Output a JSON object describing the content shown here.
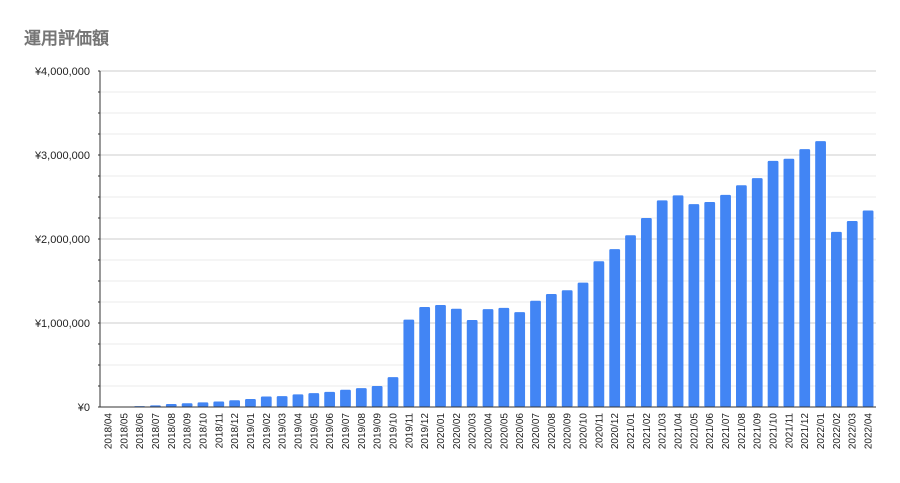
{
  "chart_data": {
    "type": "bar",
    "title": "運用評価額",
    "xlabel": "",
    "ylabel": "",
    "ylim": [
      0,
      4000000
    ],
    "y_ticks": [
      {
        "value": 0,
        "label": "¥0"
      },
      {
        "value": 1000000,
        "label": "¥1,000,000"
      },
      {
        "value": 2000000,
        "label": "¥2,000,000"
      },
      {
        "value": 3000000,
        "label": "¥3,000,000"
      },
      {
        "value": 4000000,
        "label": "¥4,000,000"
      }
    ],
    "grid": true,
    "bar_color": "#4285F4",
    "categories": [
      "2018/04",
      "2018/05",
      "2018/06",
      "2018/07",
      "2018/08",
      "2018/09",
      "2018/10",
      "2018/11",
      "2018/12",
      "2019/01",
      "2019/02",
      "2019/03",
      "2019/04",
      "2019/05",
      "2019/06",
      "2019/07",
      "2019/08",
      "2019/09",
      "2019/10",
      "2019/11",
      "2019/12",
      "2020/01",
      "2020/02",
      "2020/03",
      "2020/04",
      "2020/05",
      "2020/06",
      "2020/07",
      "2020/08",
      "2020/09",
      "2020/10",
      "2020/11",
      "2020/12",
      "2021/01",
      "2021/02",
      "2021/03",
      "2021/04",
      "2021/05",
      "2021/06",
      "2021/07",
      "2021/08",
      "2021/09",
      "2021/10",
      "2021/11",
      "2021/12",
      "2022/01",
      "2022/02",
      "2022/03",
      "2022/04"
    ],
    "values": [
      2000,
      5000,
      10000,
      20000,
      35000,
      45000,
      55000,
      65000,
      80000,
      95000,
      125000,
      130000,
      150000,
      165000,
      180000,
      205000,
      225000,
      250000,
      355000,
      1040000,
      1190000,
      1215000,
      1170000,
      1035000,
      1165000,
      1180000,
      1130000,
      1265000,
      1345000,
      1390000,
      1480000,
      1735000,
      1880000,
      2045000,
      2250000,
      2460000,
      2520000,
      2415000,
      2440000,
      2525000,
      2640000,
      2725000,
      2930000,
      2955000,
      3070000,
      3165000,
      2085000,
      2215000,
      2340000
    ]
  }
}
